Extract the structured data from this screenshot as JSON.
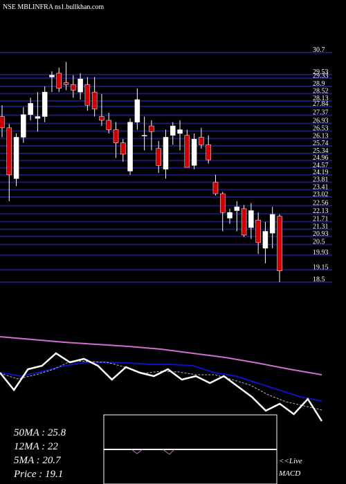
{
  "chart_data": {
    "type": "candlestick",
    "title": "NSE MBLINFRA ns1.bullkhan.com",
    "ylim": [
      18.5,
      30.7
    ],
    "yticks": [
      30.7,
      29.53,
      29.33,
      28.9,
      28.52,
      28.13,
      27.84,
      27.37,
      26.93,
      26.53,
      26.13,
      25.74,
      25.34,
      24.96,
      24.57,
      24.19,
      23.81,
      23.41,
      23.02,
      22.56,
      22.13,
      21.71,
      21.31,
      20.93,
      20.5,
      19.93,
      19.15,
      18.5
    ],
    "up_color": "#ffffff",
    "down_color": "#cc0000",
    "grid_color": "#1a1a6e",
    "open": [
      27.3,
      26.7,
      24.0,
      26.2,
      27.4,
      27.2,
      27.3,
      29.4,
      29.6,
      29.1,
      29.0,
      28.6,
      29.0,
      28.6,
      27.3,
      27.1,
      26.6,
      25.9,
      24.4,
      27.0,
      26.3,
      26.8,
      25.6,
      24.5,
      26.3,
      26.4,
      26.3,
      24.7,
      26.2,
      25.8,
      23.8,
      23.2,
      21.9,
      22.3,
      22.4,
      21.4,
      21.8,
      20.3,
      21.1,
      22.0
    ],
    "high": [
      27.9,
      26.9,
      26.4,
      27.8,
      28.3,
      28.6,
      28.9,
      29.7,
      29.9,
      30.2,
      29.5,
      29.6,
      29.4,
      29.4,
      28.5,
      27.5,
      27.0,
      26.1,
      27.2,
      28.8,
      27.3,
      27.1,
      26.0,
      26.6,
      27.0,
      27.1,
      26.6,
      26.4,
      26.7,
      26.3,
      24.2,
      23.3,
      22.4,
      22.8,
      22.6,
      22.7,
      22.2,
      21.7,
      22.5,
      22.1
    ],
    "low": [
      26.2,
      22.8,
      23.6,
      25.9,
      27.1,
      26.5,
      27.0,
      28.6,
      28.6,
      28.7,
      28.3,
      28.2,
      27.6,
      27.3,
      26.8,
      26.4,
      25.1,
      24.9,
      24.2,
      26.6,
      25.5,
      25.5,
      24.3,
      24.0,
      25.8,
      25.5,
      24.6,
      24.5,
      25.6,
      24.8,
      23.1,
      21.2,
      21.6,
      21.2,
      20.9,
      20.8,
      20.0,
      19.5,
      20.3,
      18.5
    ],
    "close": [
      26.7,
      24.2,
      26.2,
      27.4,
      28.0,
      27.3,
      28.6,
      29.5,
      28.8,
      29.0,
      28.7,
      29.3,
      27.9,
      27.7,
      27.1,
      26.6,
      25.9,
      25.3,
      27.0,
      28.2,
      26.3,
      26.5,
      24.7,
      26.2,
      26.8,
      26.6,
      24.6,
      26.1,
      25.8,
      25.0,
      23.2,
      22.2,
      22.2,
      22.5,
      21.0,
      22.3,
      20.6,
      21.2,
      22.1,
      19.1
    ],
    "ma_panel": {
      "ylim": [
        18,
        32
      ],
      "series": [
        {
          "name": "50MA",
          "color": "#d070d0",
          "values": [
            31.3,
            30.9,
            30.5,
            30.2,
            29.9,
            29.5,
            28.9,
            28.3,
            27.5,
            26.6,
            25.8
          ]
        },
        {
          "name": "12MA",
          "color": "#1010c0",
          "values": [
            26.1,
            25.6,
            26.3,
            27.1,
            27.6,
            27.6,
            27.5,
            27.3,
            27.3,
            27.1,
            26.1,
            25.6,
            24.6,
            23.6,
            22.6,
            22.0
          ]
        },
        {
          "name": "5MA",
          "color": "#bbbbbb",
          "values": [
            26.0,
            25.2,
            25.8,
            26.6,
            27.8,
            27.7,
            27.6,
            26.9,
            26.0,
            26.3,
            26.2,
            25.8,
            25.8,
            25.1,
            24.3,
            22.9,
            21.9,
            21.3,
            20.7
          ]
        },
        {
          "name": "Price",
          "color": "#ffffff",
          "values": [
            26.1,
            23.6,
            26.6,
            27.1,
            28.9,
            27.6,
            28.1,
            27.1,
            25.1,
            26.9,
            26.1,
            25.6,
            26.6,
            25.1,
            25.6,
            24.6,
            25.6,
            24.1,
            22.6,
            20.6,
            21.6,
            20.1,
            22.3,
            19.1
          ]
        }
      ]
    },
    "info_labels": [
      "50MA : 25.8",
      "12MA : 22",
      "5MA : 20.7",
      "Price   : 19.1"
    ],
    "macd_label": [
      "<<Live",
      "MACD"
    ]
  }
}
